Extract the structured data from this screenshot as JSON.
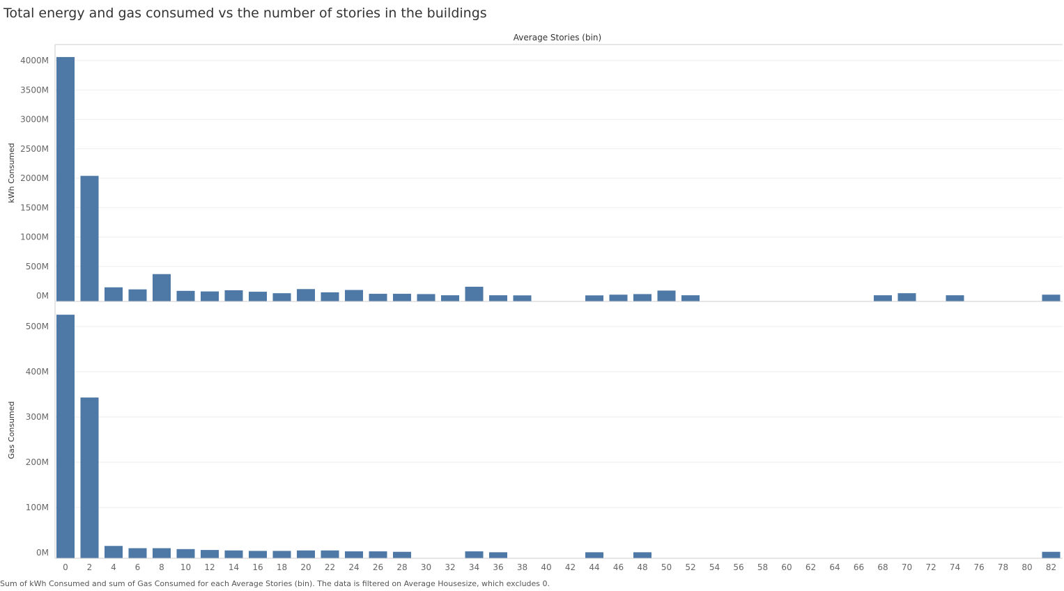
{
  "title": "Total energy and gas consumed vs the number of stories in the buildings",
  "caption": "Sum of kWh Consumed and sum of Gas Consumed for each Average Stories (bin). The data is filtered on Average Housesize, which excludes 0.",
  "colors": {
    "bar": "#4e79a7",
    "grid": "#eeeeee",
    "axis": "#cccccc",
    "tick_text": "#666666",
    "label_text": "#333333"
  },
  "chart_data": {
    "type": "bar",
    "xlabel": "Average Stories (bin)",
    "categories": [
      "0",
      "2",
      "4",
      "6",
      "8",
      "10",
      "12",
      "14",
      "16",
      "18",
      "20",
      "22",
      "24",
      "26",
      "28",
      "30",
      "32",
      "34",
      "36",
      "38",
      "40",
      "42",
      "44",
      "46",
      "48",
      "50",
      "52",
      "54",
      "56",
      "58",
      "60",
      "62",
      "64",
      "66",
      "68",
      "70",
      "72",
      "74",
      "76",
      "78",
      "80",
      "82"
    ],
    "grid": true,
    "panels": [
      {
        "ylabel": "kWh Consumed",
        "ylim": [
          0,
          4200
        ],
        "yticks": [
          0,
          500,
          1000,
          1500,
          2000,
          2500,
          3000,
          3500,
          4000
        ],
        "ytick_labels": [
          "0M",
          "500M",
          "1000M",
          "1500M",
          "2000M",
          "2500M",
          "3000M",
          "3500M",
          "4000M"
        ],
        "values": [
          4060,
          2040,
          145,
          110,
          370,
          85,
          75,
          95,
          70,
          45,
          115,
          60,
          100,
          35,
          35,
          30,
          10,
          155,
          10,
          8,
          0,
          0,
          8,
          20,
          30,
          90,
          10,
          0,
          0,
          0,
          0,
          0,
          0,
          0,
          10,
          45,
          0,
          10,
          0,
          0,
          0,
          20
        ]
      },
      {
        "ylabel": "Gas Consumed",
        "ylim": [
          0,
          530
        ],
        "yticks": [
          0,
          100,
          200,
          300,
          400,
          500
        ],
        "ytick_labels": [
          "0M",
          "100M",
          "200M",
          "300M",
          "400M",
          "500M"
        ],
        "values": [
          526,
          343,
          15,
          10,
          10,
          8,
          6,
          5,
          4,
          4,
          5,
          5,
          3,
          3,
          2,
          0,
          0,
          3,
          1,
          0,
          0,
          0,
          1,
          0,
          1,
          0,
          0,
          0,
          0,
          0,
          0,
          0,
          0,
          0,
          0,
          0,
          0,
          0,
          0,
          0,
          0,
          2
        ]
      }
    ]
  }
}
